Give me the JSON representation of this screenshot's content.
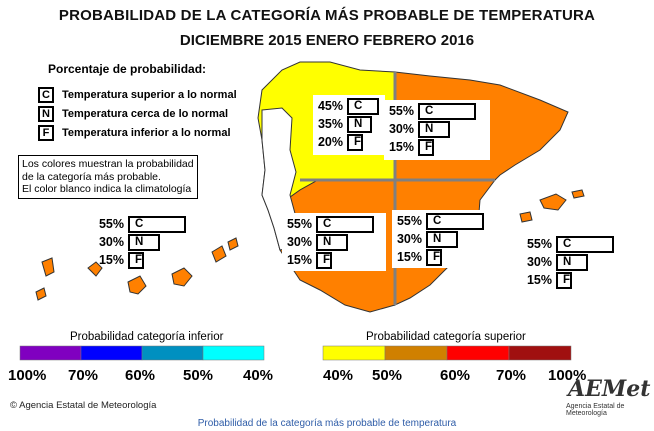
{
  "title_line1": "PROBABILIDAD DE LA CATEGORÍA MÁS PROBABLE DE TEMPERATURA",
  "title_line2": "DICIEMBRE 2015  ENERO  FEBRERO 2016",
  "legend": {
    "heading": "Porcentaje de probabilidad:",
    "rows": [
      {
        "letter": "C",
        "text": "Temperatura superior a lo normal"
      },
      {
        "letter": "N",
        "text": "Temperatura cerca de lo normal"
      },
      {
        "letter": "F",
        "text": "Temperatura inferior a lo normal"
      }
    ]
  },
  "note": {
    "line1": "Los colores muestran la probabilidad",
    "line2": "de la categoría más probable.",
    "line3": "El color blanco indica la climatología"
  },
  "regions": {
    "northwest": {
      "c": "45%",
      "n": "35%",
      "f": "20%",
      "color": "#ffff00",
      "c_fill": 0.45,
      "n_fill": 0.35,
      "f_fill": 0.2
    },
    "northeast": {
      "c": "55%",
      "n": "30%",
      "f": "15%",
      "color": "#ff8000",
      "c_fill": 0.55,
      "n_fill": 0.3,
      "f_fill": 0.15
    },
    "southwest": {
      "c": "55%",
      "n": "30%",
      "f": "15%",
      "color": "#ff8000",
      "c_fill": 0.55,
      "n_fill": 0.3,
      "f_fill": 0.15
    },
    "southeast": {
      "c": "55%",
      "n": "30%",
      "f": "15%",
      "color": "#ff8000",
      "c_fill": 0.55,
      "n_fill": 0.3,
      "f_fill": 0.15
    },
    "canarias": {
      "c": "55%",
      "n": "30%",
      "f": "15%",
      "color": "#ff8000",
      "c_fill": 0.55,
      "n_fill": 0.3,
      "f_fill": 0.15
    },
    "baleares": {
      "c": "55%",
      "n": "30%",
      "f": "15%",
      "color": "#ff8000",
      "c_fill": 0.55,
      "n_fill": 0.3,
      "f_fill": 0.15
    }
  },
  "scale_inferior": {
    "label": "Probabilidad categoría inferior",
    "colors": [
      "#8000c0",
      "#0000ff",
      "#0090c0",
      "#00ffff"
    ],
    "ticks": [
      "100%",
      "70%",
      "60%",
      "50%",
      "40%"
    ]
  },
  "scale_superior": {
    "label": "Probabilidad categoría superior",
    "colors": [
      "#ffff00",
      "#d08000",
      "#ff0000",
      "#a01010"
    ],
    "ticks": [
      "40%",
      "50%",
      "60%",
      "70%",
      "100%"
    ]
  },
  "agency": "© Agencia Estatal de Meteorología",
  "logo_text": "AEMet",
  "logo_sub": "Agencia Estatal de Meteorología",
  "footer": "Probabilidad de la categoría más probable de temperatura"
}
